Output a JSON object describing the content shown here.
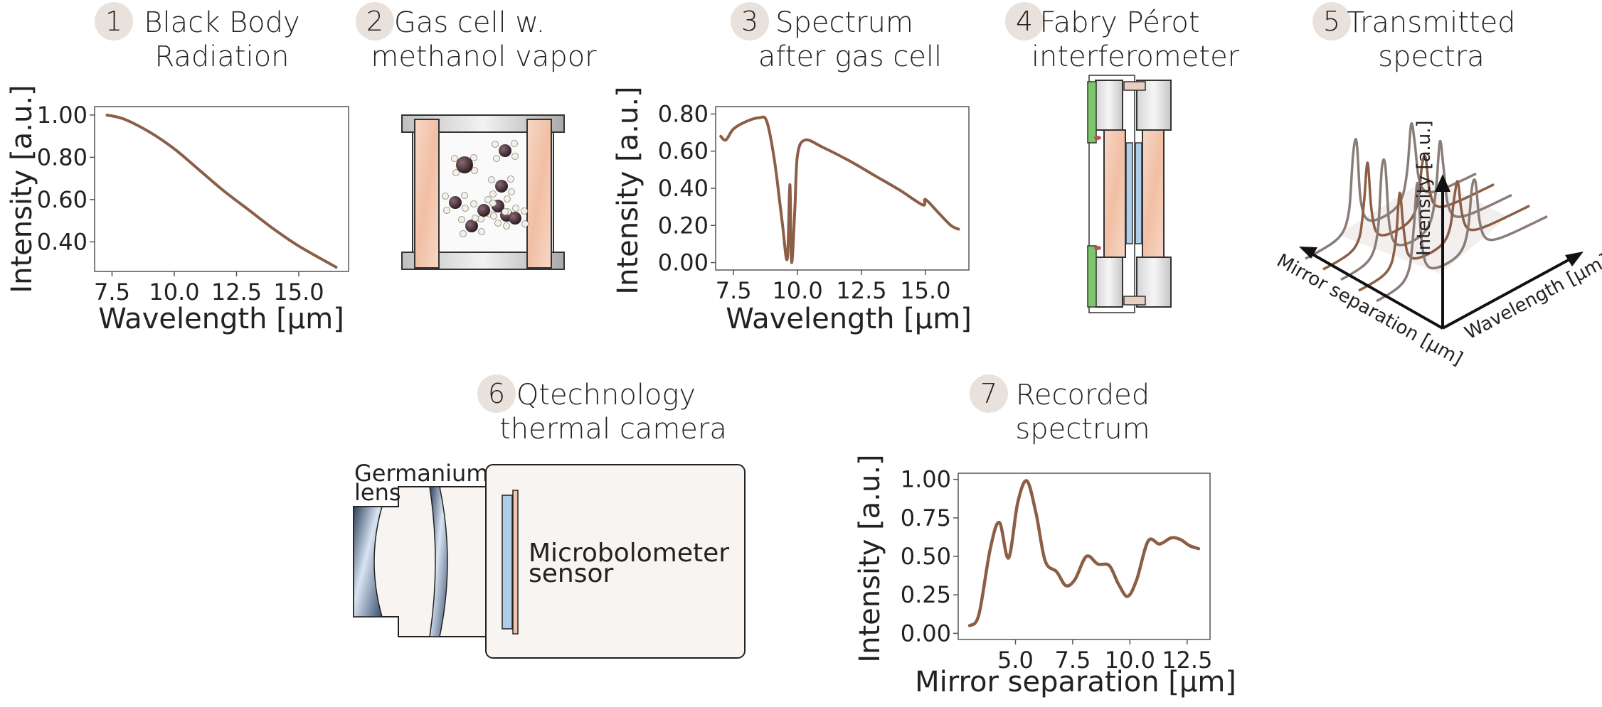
{
  "steps": [
    {
      "num": "1",
      "line1": "Black Body",
      "line2": "Radiation"
    },
    {
      "num": "2",
      "line1": "Gas cell w.",
      "line2": "methanol vapor"
    },
    {
      "num": "3",
      "line1": "Spectrum",
      "line2": "after gas cell"
    },
    {
      "num": "4",
      "line1": "Fabry Pérot",
      "line2": "interferometer"
    },
    {
      "num": "5",
      "line1": "Transmitted",
      "line2": "spectra"
    },
    {
      "num": "6",
      "line1": "Qtechnology",
      "line2": "thermal camera"
    },
    {
      "num": "7",
      "line1": "Recorded",
      "line2": "spectrum"
    }
  ],
  "camera": {
    "lens_label_1": "Germanium",
    "lens_label_2": "lens",
    "sensor_label_1": "Microbolometer",
    "sensor_label_2": "sensor"
  },
  "spectra3d": {
    "axis_z": "Intensity [a.u.]",
    "axis_mirror": "Mirror separation [µm]",
    "axis_wavelength": "Wavelength [µm]"
  },
  "colors": {
    "curve": "#8b5e45",
    "badge": "#e8e1dc",
    "window": "#f4c9b2",
    "green": "#7bc86a",
    "sensor": "#aecde9"
  },
  "chart_data": [
    {
      "id": "blackbody",
      "type": "line",
      "xlabel": "Wavelength [µm]",
      "ylabel": "Intensity [a.u.]",
      "xlim": [
        6.8,
        17.0
      ],
      "ylim": [
        0.26,
        1.04
      ],
      "xticks": [
        "7.5",
        "10.0",
        "12.5",
        "15.0"
      ],
      "yticks": [
        "0.40",
        "0.60",
        "0.80",
        "1.00"
      ],
      "x": [
        7.3,
        8.0,
        9.0,
        10.0,
        11.0,
        12.0,
        13.0,
        14.0,
        15.0,
        16.5
      ],
      "y": [
        1.0,
        0.98,
        0.92,
        0.84,
        0.74,
        0.64,
        0.55,
        0.46,
        0.38,
        0.28
      ]
    },
    {
      "id": "gas_cell_spectrum",
      "type": "line",
      "xlabel": "Wavelength [µm]",
      "ylabel": "Intensity [a.u.]",
      "xlim": [
        6.8,
        16.7
      ],
      "ylim": [
        -0.04,
        0.84
      ],
      "xticks": [
        "7.5",
        "10.0",
        "12.5",
        "15.0"
      ],
      "yticks": [
        "0.00",
        "0.20",
        "0.40",
        "0.60",
        "0.80"
      ],
      "x": [
        7.0,
        7.2,
        7.5,
        8.0,
        8.5,
        8.8,
        9.1,
        9.4,
        9.6,
        9.7,
        9.75,
        9.8,
        9.9,
        10.0,
        10.3,
        11.0,
        12.0,
        13.0,
        14.0,
        14.9,
        15.0,
        15.5,
        16.0,
        16.3
      ],
      "y": [
        0.68,
        0.66,
        0.72,
        0.76,
        0.78,
        0.76,
        0.55,
        0.22,
        0.02,
        0.42,
        0.05,
        0.03,
        0.3,
        0.58,
        0.66,
        0.62,
        0.55,
        0.47,
        0.39,
        0.31,
        0.34,
        0.27,
        0.2,
        0.18
      ]
    },
    {
      "id": "recorded_spectrum",
      "type": "line",
      "xlabel": "Mirror  separation [µm]",
      "ylabel": "Intensity [a.u.]",
      "xlim": [
        2.5,
        13.5
      ],
      "ylim": [
        -0.04,
        1.04
      ],
      "xticks": [
        "5.0",
        "7.5",
        "10.0",
        "12.5"
      ],
      "yticks": [
        "0.00",
        "0.25",
        "0.50",
        "0.75",
        "1.00"
      ],
      "x": [
        3.0,
        3.4,
        3.9,
        4.3,
        4.7,
        5.1,
        5.5,
        5.9,
        6.3,
        6.8,
        7.2,
        7.6,
        8.1,
        8.6,
        9.1,
        9.5,
        9.9,
        10.3,
        10.8,
        11.3,
        11.8,
        12.2,
        12.6,
        13.0
      ],
      "y": [
        0.05,
        0.12,
        0.55,
        0.72,
        0.49,
        0.85,
        0.99,
        0.78,
        0.47,
        0.4,
        0.31,
        0.35,
        0.5,
        0.45,
        0.44,
        0.32,
        0.24,
        0.35,
        0.6,
        0.58,
        0.62,
        0.61,
        0.57,
        0.55
      ]
    }
  ]
}
